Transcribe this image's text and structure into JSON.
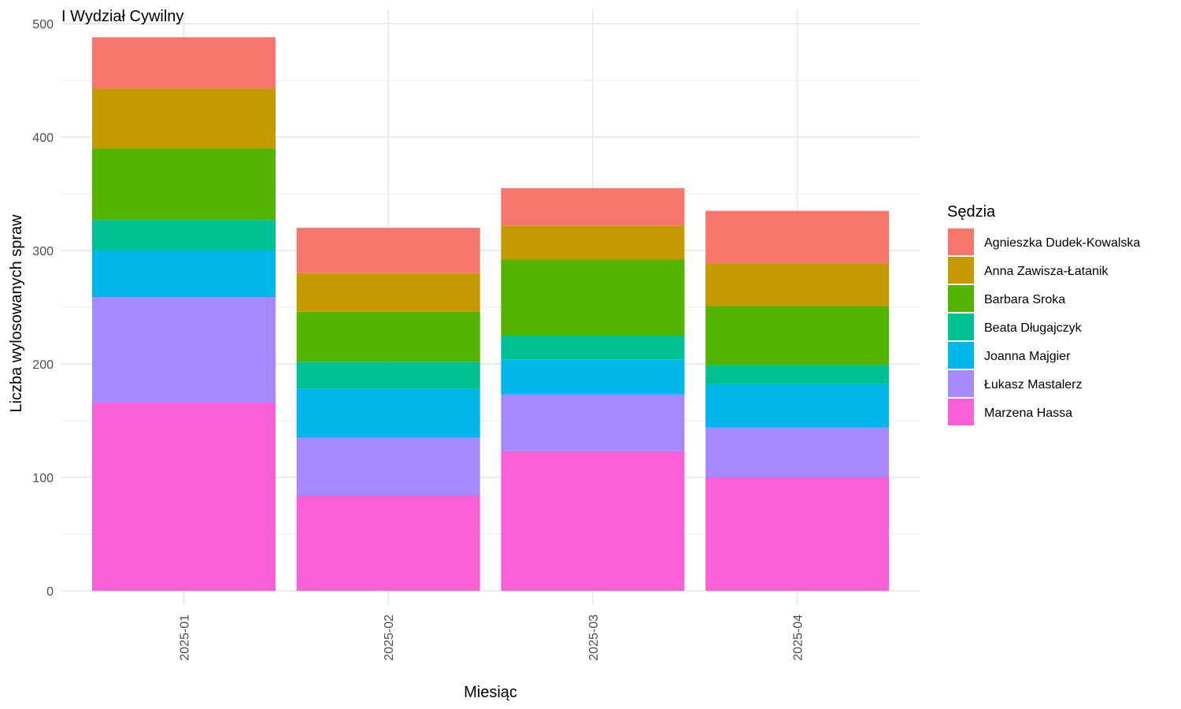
{
  "chart_data": {
    "type": "bar",
    "stacked": true,
    "title": "I Wydział Cywilny",
    "xlabel": "Miesiąc",
    "ylabel": "Liczba wylosowanych spraw",
    "ylim": [
      0,
      500
    ],
    "yticks": [
      0,
      100,
      200,
      300,
      400,
      500
    ],
    "grid": true,
    "legend_title": "Sędzia",
    "legend_position": "right",
    "categories": [
      "2025-01",
      "2025-02",
      "2025-03",
      "2025-04"
    ],
    "series": [
      {
        "name": "Agnieszka Dudek-Kowalska",
        "color": "#F8766D",
        "values": [
          45,
          40,
          33,
          46
        ]
      },
      {
        "name": "Anna Zawisza-Łatanik",
        "color": "#C49A00",
        "values": [
          53,
          34,
          30,
          38
        ]
      },
      {
        "name": "Barbara Sroka",
        "color": "#53B400",
        "values": [
          63,
          44,
          67,
          52
        ]
      },
      {
        "name": "Beata Długajczyk",
        "color": "#00C094",
        "values": [
          27,
          24,
          21,
          17
        ]
      },
      {
        "name": "Joanna Majgier",
        "color": "#00B6EB",
        "values": [
          41,
          43,
          31,
          38
        ]
      },
      {
        "name": "Łukasz Mastalerz",
        "color": "#A58AFF",
        "values": [
          93,
          51,
          50,
          44
        ]
      },
      {
        "name": "Marzena Hassa",
        "color": "#FB61D7",
        "values": [
          166,
          84,
          123,
          100
        ]
      }
    ]
  }
}
